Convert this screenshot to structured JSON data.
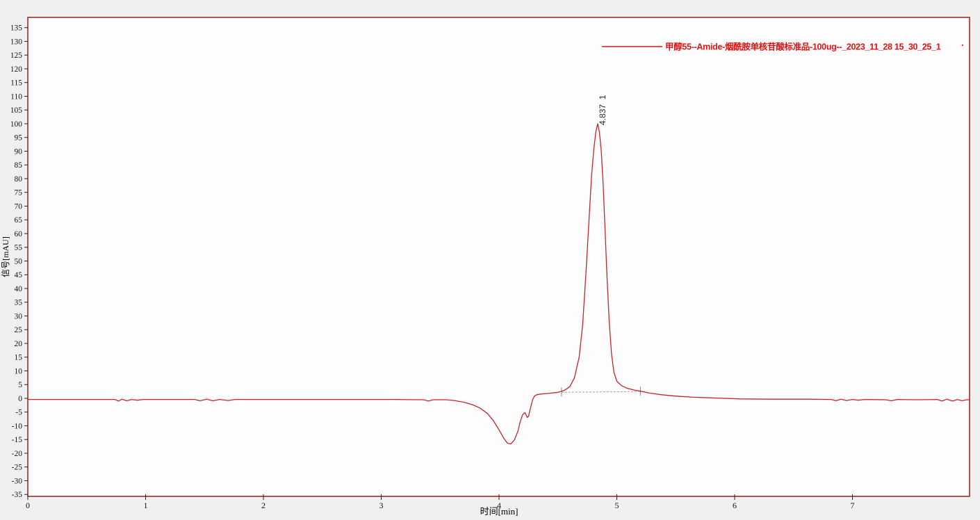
{
  "window": {
    "background_color": "#f0f0f1"
  },
  "legend": {
    "label": "甲醇55--Amide-烟酰胺单核苷酸标准品-100ug--_2023_11_28 15_30_25_1",
    "text_color": "#e8100e",
    "line_color": "#d01818",
    "dot_marker": "."
  },
  "chart_data": {
    "type": "line",
    "title": "",
    "xlabel": "时间[min]",
    "ylabel": "信号[mAU]",
    "xlim": [
      0,
      7.994
    ],
    "ylim": [
      -35.7,
      138.73
    ],
    "x_ticks": [
      0,
      1,
      2,
      3,
      4,
      5,
      6,
      7
    ],
    "y_ticks": [
      135,
      130,
      125,
      120,
      115,
      110,
      105,
      100,
      95,
      90,
      85,
      80,
      75,
      70,
      65,
      60,
      55,
      50,
      45,
      40,
      35,
      30,
      25,
      20,
      15,
      10,
      5,
      0,
      -5,
      -10,
      -15,
      -20,
      -25,
      -30,
      -35
    ],
    "grid": false,
    "legend_position": "top-right",
    "colors": {
      "plot_bg": "#fdfdfe",
      "border": "#9e1a1a",
      "tick_text": "#141414",
      "baseline": "#a0a0a0",
      "peak_label_text": "#2a2a2a"
    },
    "peak_labels": [
      {
        "text": "4.837  1",
        "retention_time": 4.837,
        "apex_value": 100
      }
    ],
    "baseline_segment": {
      "x1": 4.53,
      "y1": 2.2,
      "x2": 5.2,
      "y2": 2.5
    },
    "series": [
      {
        "name": "甲醇55--Amide-烟酰胺单核苷酸标准品-100ug--_2023_11_28 15_30_25_1",
        "color": "#c8232b",
        "points": [
          [
            0,
            -0.4
          ],
          [
            0.4,
            -0.4
          ],
          [
            0.74,
            -0.4
          ],
          [
            0.77,
            -1.0
          ],
          [
            0.8,
            -0.3
          ],
          [
            0.84,
            -0.9
          ],
          [
            0.88,
            -0.4
          ],
          [
            0.93,
            -0.7
          ],
          [
            0.98,
            -0.4
          ],
          [
            1.1,
            -0.4
          ],
          [
            1.42,
            -0.4
          ],
          [
            1.46,
            -0.9
          ],
          [
            1.52,
            -0.3
          ],
          [
            1.57,
            -0.9
          ],
          [
            1.63,
            -0.4
          ],
          [
            1.7,
            -0.8
          ],
          [
            1.76,
            -0.4
          ],
          [
            2.0,
            -0.4
          ],
          [
            2.6,
            -0.4
          ],
          [
            3.1,
            -0.4
          ],
          [
            3.36,
            -0.5
          ],
          [
            3.4,
            -1.0
          ],
          [
            3.44,
            -0.5
          ],
          [
            3.55,
            -0.5
          ],
          [
            3.62,
            -0.8
          ],
          [
            3.7,
            -1.4
          ],
          [
            3.78,
            -2.4
          ],
          [
            3.84,
            -3.6
          ],
          [
            3.9,
            -5.5
          ],
          [
            3.95,
            -8.0
          ],
          [
            4.0,
            -11.5
          ],
          [
            4.04,
            -14.5
          ],
          [
            4.07,
            -16.3
          ],
          [
            4.1,
            -16.6
          ],
          [
            4.13,
            -15.2
          ],
          [
            4.16,
            -12.0
          ],
          [
            4.18,
            -8.5
          ],
          [
            4.2,
            -6.0
          ],
          [
            4.22,
            -5.2
          ],
          [
            4.24,
            -7.0
          ],
          [
            4.25,
            -6.5
          ],
          [
            4.27,
            -3.0
          ],
          [
            4.285,
            -0.5
          ],
          [
            4.3,
            0.8
          ],
          [
            4.32,
            1.3
          ],
          [
            4.36,
            1.6
          ],
          [
            4.42,
            1.8
          ],
          [
            4.5,
            2.2
          ],
          [
            4.55,
            2.8
          ],
          [
            4.6,
            4.2
          ],
          [
            4.64,
            7.5
          ],
          [
            4.68,
            15
          ],
          [
            4.71,
            27
          ],
          [
            4.74,
            47
          ],
          [
            4.765,
            66
          ],
          [
            4.785,
            81
          ],
          [
            4.805,
            91
          ],
          [
            4.822,
            97
          ],
          [
            4.837,
            100
          ],
          [
            4.852,
            97
          ],
          [
            4.868,
            90
          ],
          [
            4.884,
            78
          ],
          [
            4.9,
            61
          ],
          [
            4.917,
            44
          ],
          [
            4.935,
            28
          ],
          [
            4.955,
            16
          ],
          [
            4.975,
            9.5
          ],
          [
            5.0,
            6.2
          ],
          [
            5.04,
            4.6
          ],
          [
            5.09,
            3.6
          ],
          [
            5.15,
            3.0
          ],
          [
            5.2,
            2.6
          ],
          [
            5.28,
            1.9
          ],
          [
            5.38,
            1.3
          ],
          [
            5.5,
            0.8
          ],
          [
            5.65,
            0.4
          ],
          [
            5.85,
            0.1
          ],
          [
            6.05,
            -0.2
          ],
          [
            6.3,
            -0.3
          ],
          [
            6.6,
            -0.3
          ],
          [
            6.82,
            -0.4
          ],
          [
            6.86,
            -0.9
          ],
          [
            6.9,
            -0.3
          ],
          [
            6.95,
            -0.8
          ],
          [
            7.0,
            -0.4
          ],
          [
            7.05,
            -0.7
          ],
          [
            7.1,
            -0.4
          ],
          [
            7.28,
            -0.5
          ],
          [
            7.33,
            -0.9
          ],
          [
            7.38,
            -0.4
          ],
          [
            7.55,
            -0.5
          ],
          [
            7.72,
            -0.4
          ],
          [
            7.76,
            -1.0
          ],
          [
            7.8,
            -0.3
          ],
          [
            7.85,
            -1.0
          ],
          [
            7.89,
            -0.4
          ],
          [
            7.93,
            -0.9
          ],
          [
            7.97,
            -0.5
          ],
          [
            7.99,
            -0.5
          ]
        ]
      }
    ]
  }
}
